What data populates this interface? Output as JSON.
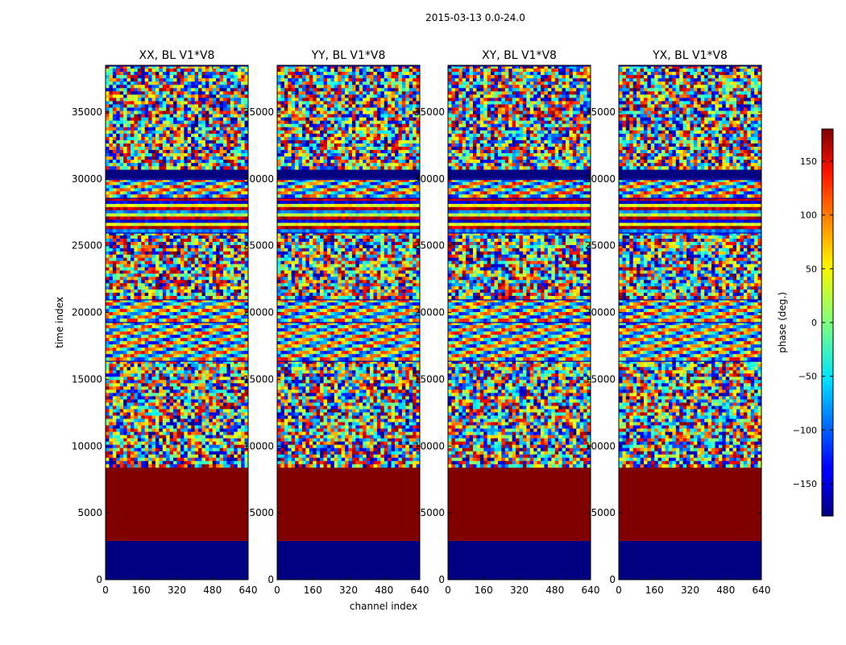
{
  "chart_data": {
    "type": "heatmap",
    "suptitle": "2015-03-13 0.0-24.0",
    "xlabel": "channel index",
    "ylabel": "time index",
    "xlim": [
      0,
      640
    ],
    "ylim": [
      0,
      38500
    ],
    "xticks": [
      "0",
      "160",
      "320",
      "480",
      "640"
    ],
    "xtick_values": [
      0,
      160,
      320,
      480,
      640
    ],
    "yticks": [
      "0",
      "5000",
      "10000",
      "15000",
      "20000",
      "25000",
      "30000",
      "35000"
    ],
    "ytick_values": [
      0,
      5000,
      10000,
      15000,
      20000,
      25000,
      30000,
      35000
    ],
    "panels": [
      {
        "title": "XX, BL V1*V8",
        "pol": "XX"
      },
      {
        "title": "YY, BL V1*V8",
        "pol": "YY"
      },
      {
        "title": "XY, BL V1*V8",
        "pol": "XY"
      },
      {
        "title": "YX, BL V1*V8",
        "pol": "YX"
      }
    ],
    "colorbar": {
      "label": "phase (deg.)",
      "range": [
        -180,
        180
      ],
      "ticks": [
        "150",
        "100",
        "50",
        "0",
        "−50",
        "−100",
        "−150"
      ],
      "tick_values": [
        150,
        100,
        50,
        0,
        -50,
        -100,
        -150
      ],
      "colormap": "jet"
    },
    "bands": [
      {
        "t0": 0,
        "t1": 2900,
        "kind": "flag_low",
        "phase": -180
      },
      {
        "t0": 2900,
        "t1": 8400,
        "kind": "constant",
        "phase": 180
      },
      {
        "t0": 8400,
        "t1": 16400,
        "kind": "noise"
      },
      {
        "t0": 16400,
        "t1": 19300,
        "kind": "fringe"
      },
      {
        "t0": 19300,
        "t1": 21000,
        "kind": "fringe"
      },
      {
        "t0": 21000,
        "t1": 26000,
        "kind": "noise"
      },
      {
        "t0": 26000,
        "t1": 28600,
        "kind": "strong_stripes"
      },
      {
        "t0": 28600,
        "t1": 30000,
        "kind": "fringe"
      },
      {
        "t0": 30000,
        "t1": 30700,
        "kind": "flag_low",
        "phase": -180
      },
      {
        "t0": 30700,
        "t1": 38500,
        "kind": "noise"
      }
    ]
  }
}
